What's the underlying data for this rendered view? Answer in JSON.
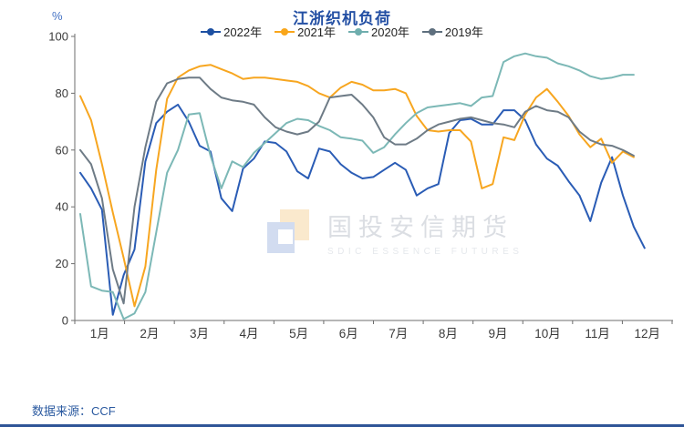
{
  "title": "江浙织机负荷",
  "y_axis_unit": "%",
  "source": "数据来源：CCF",
  "watermark": {
    "cn": "国投安信期货",
    "en": "SDIC ESSENCE FUTURES"
  },
  "colors": {
    "title": "#2450a4",
    "source": "#2b5aa0",
    "footer_rule": "#2f5597",
    "axis": "#6e6e6e",
    "tick_label": "#3a3a3a",
    "y_unit": "#4472c4"
  },
  "legend": [
    {
      "label": "2022年",
      "color": "#1d50a2"
    },
    {
      "label": "2021年",
      "color": "#f9a61a"
    },
    {
      "label": "2020年",
      "color": "#6faeae"
    },
    {
      "label": "2019年",
      "color": "#5e6f7e"
    }
  ],
  "chart_data": {
    "type": "line",
    "title": "江浙织机负荷",
    "ylabel": "%",
    "ylim": [
      0,
      100
    ],
    "y_ticks": [
      0,
      20,
      40,
      60,
      80,
      100
    ],
    "x_categories": [
      "1月",
      "2月",
      "3月",
      "4月",
      "5月",
      "6月",
      "7月",
      "8月",
      "9月",
      "10月",
      "11月",
      "12月"
    ],
    "x_resolution": "weekly",
    "grid": false,
    "legend_position": "top",
    "series": [
      {
        "name": "2022年",
        "color": "#2a5cb5",
        "values": [
          52,
          46.5,
          39,
          2,
          16,
          25,
          56,
          69.5,
          73.5,
          76,
          70,
          61.5,
          59.5,
          43,
          38.5,
          53.5,
          57,
          63,
          62.5,
          59.5,
          52.5,
          50,
          60.5,
          59.5,
          55,
          52,
          50,
          50.5,
          53,
          55.5,
          53,
          44,
          46.5,
          48,
          66,
          70.5,
          71,
          69,
          69,
          74,
          74,
          70.5,
          62,
          57,
          54.5,
          49,
          44,
          35,
          48.5,
          57.5,
          44,
          33,
          25.5
        ]
      },
      {
        "name": "2021年",
        "color": "#f7a620",
        "values": [
          79,
          70.5,
          55,
          38,
          22,
          5,
          19,
          53,
          78,
          85.5,
          88,
          89.5,
          90,
          88.5,
          87,
          85,
          85.5,
          85.5,
          85,
          84.5,
          84,
          82.5,
          80,
          78.5,
          82,
          84,
          83,
          81,
          81,
          81.5,
          80,
          72,
          67,
          66.5,
          67,
          67,
          63,
          46.5,
          48,
          64.5,
          63.5,
          72.5,
          78.5,
          81.5,
          77,
          72,
          65.5,
          61,
          64,
          55.5,
          59.5,
          57.5,
          null
        ]
      },
      {
        "name": "2020年",
        "color": "#7cb8b6",
        "values": [
          37.5,
          12,
          10.5,
          10,
          0.5,
          2.5,
          10,
          31,
          52,
          60,
          72.5,
          73,
          58,
          46.5,
          56,
          54,
          59,
          62.5,
          66,
          69.5,
          71,
          70.5,
          68.5,
          67,
          64.5,
          64,
          63.3,
          59,
          61,
          65.5,
          69.5,
          73,
          75,
          75.5,
          76,
          76.5,
          75.5,
          78.5,
          79,
          91,
          93,
          94,
          93,
          92.5,
          90.5,
          89.5,
          88,
          86,
          85,
          85.5,
          86.5,
          86.5,
          null
        ]
      },
      {
        "name": "2019年",
        "color": "#6e7b86",
        "values": [
          60,
          55,
          43,
          18,
          6,
          40,
          61,
          77,
          83.5,
          85,
          85.5,
          85.5,
          81.5,
          78.5,
          77.5,
          77,
          76,
          71.5,
          68,
          66.5,
          65.5,
          66.5,
          70,
          78.5,
          79,
          79.5,
          76,
          71.5,
          64.5,
          62,
          62,
          64,
          67,
          69,
          70,
          71,
          71.5,
          70.5,
          69.5,
          69,
          68,
          73.5,
          75.5,
          74,
          73.5,
          71.5,
          66.5,
          63.5,
          62,
          61.5,
          60,
          58,
          null
        ]
      }
    ]
  }
}
